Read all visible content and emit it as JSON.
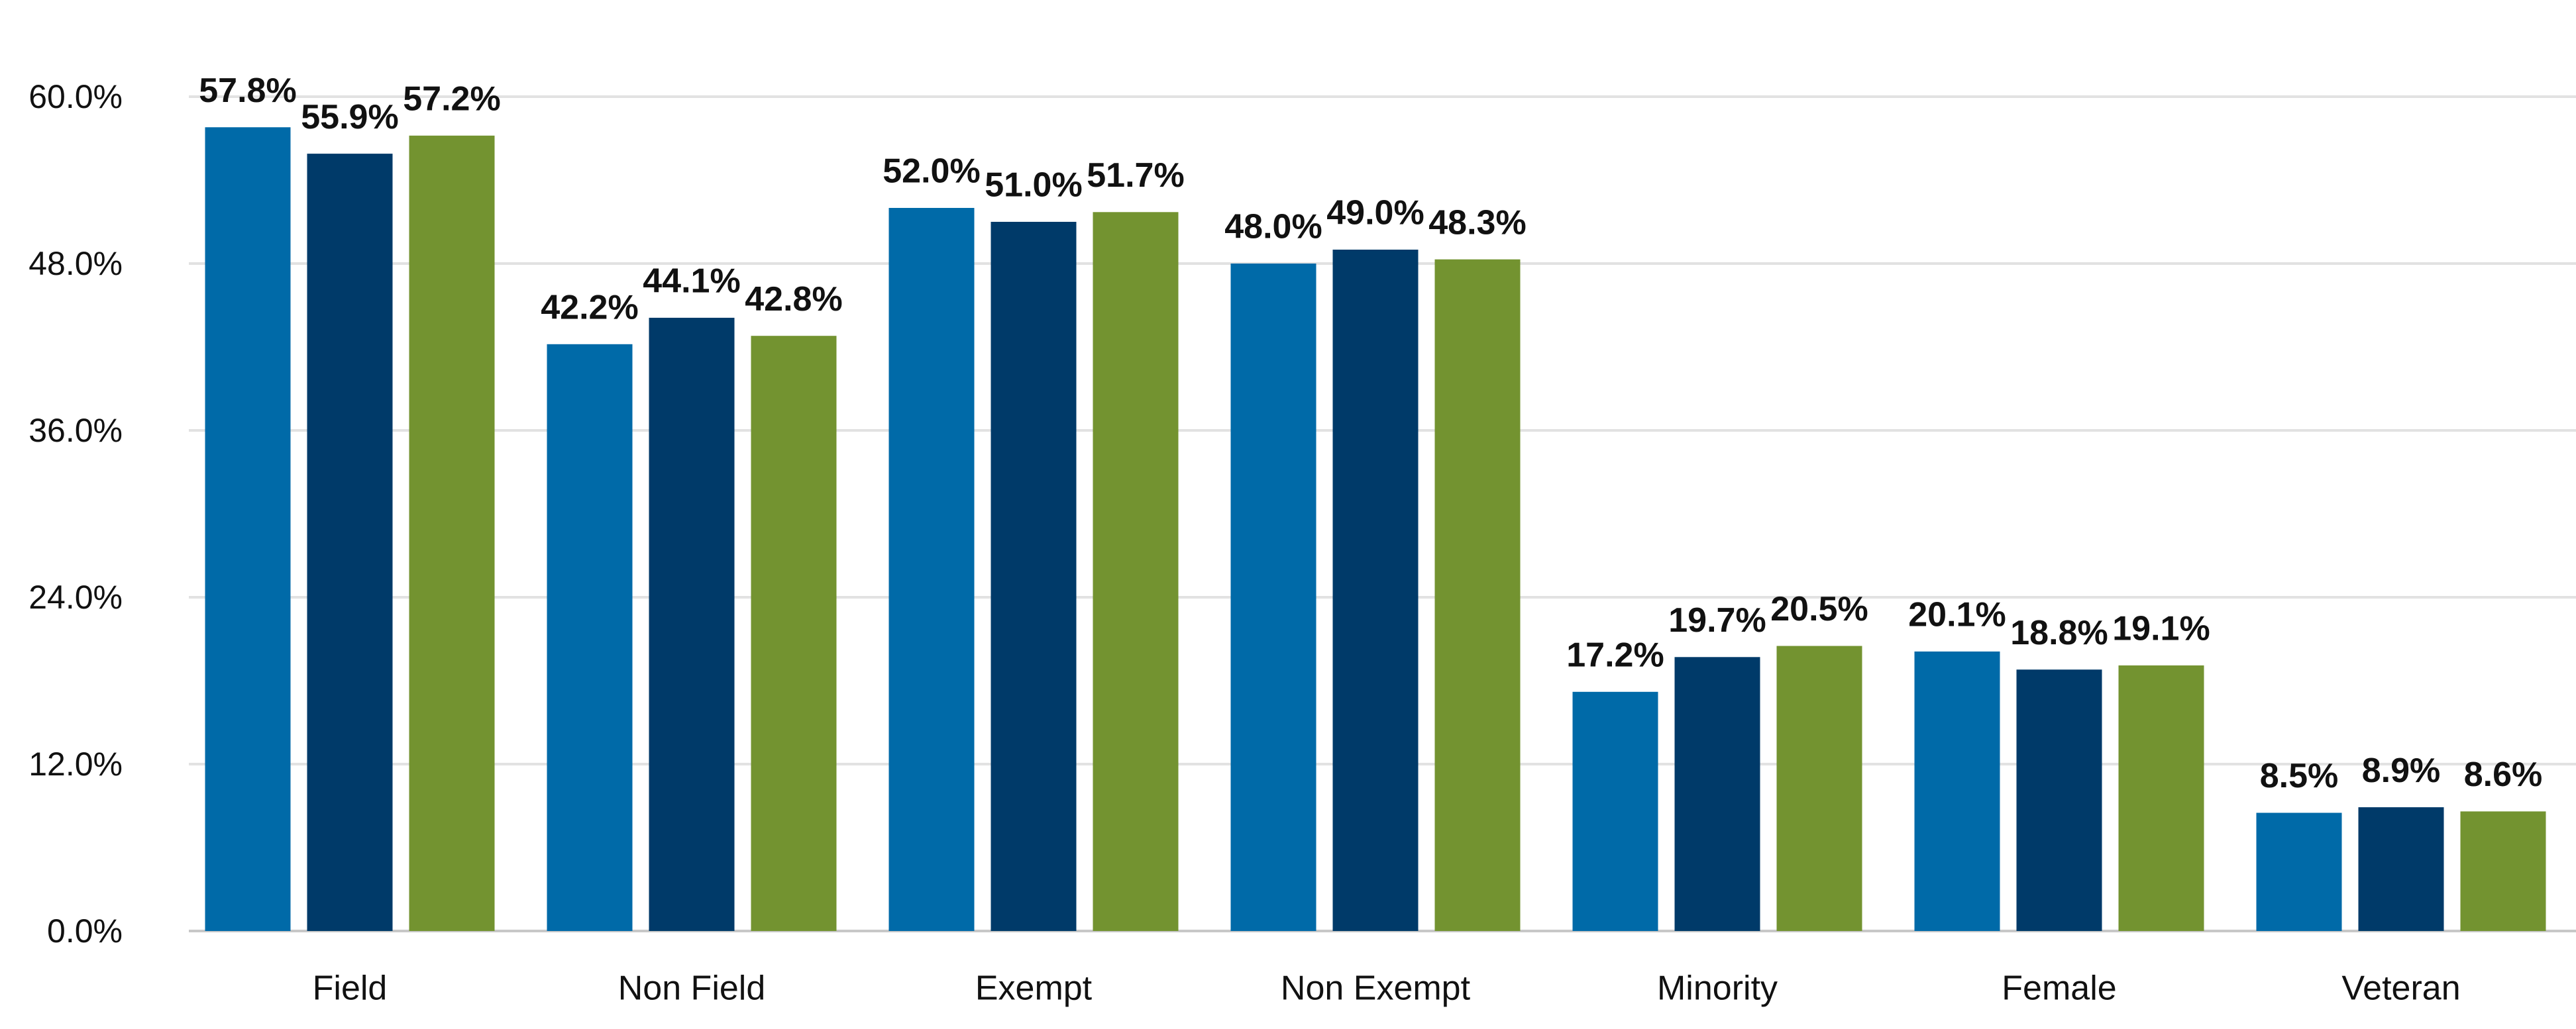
{
  "chart_data": {
    "type": "bar",
    "categories": [
      "Field",
      "Non Field",
      "Exempt",
      "Non Exempt",
      "Minority",
      "Female",
      "Veteran"
    ],
    "series": [
      {
        "color": "#006aa8",
        "values": [
          57.8,
          42.2,
          52.0,
          48.0,
          17.2,
          20.1,
          8.5
        ],
        "value_labels": [
          "57.8%",
          "42.2%",
          "52.0%",
          "48.0%",
          "17.2%",
          "20.1%",
          "8.5%"
        ]
      },
      {
        "color": "#003a69",
        "values": [
          55.9,
          44.1,
          51.0,
          49.0,
          19.7,
          18.8,
          8.9
        ],
        "value_labels": [
          "55.9%",
          "44.1%",
          "51.0%",
          "49.0%",
          "19.7%",
          "18.8%",
          "8.9%"
        ]
      },
      {
        "color": "#739330",
        "values": [
          57.2,
          42.8,
          51.7,
          48.3,
          20.5,
          19.1,
          8.6
        ],
        "value_labels": [
          "57.2%",
          "42.8%",
          "51.7%",
          "48.3%",
          "20.5%",
          "19.1%",
          "8.6%"
        ]
      }
    ],
    "ylim": [
      0,
      60
    ],
    "yticks": [
      {
        "value": 0,
        "label": "0.0%"
      },
      {
        "value": 12,
        "label": "12.0%"
      },
      {
        "value": 24,
        "label": "24.0%"
      },
      {
        "value": 36,
        "label": "36.0%"
      },
      {
        "value": 48,
        "label": "48.0%"
      },
      {
        "value": 60,
        "label": "60.0%"
      }
    ],
    "grid": true
  }
}
